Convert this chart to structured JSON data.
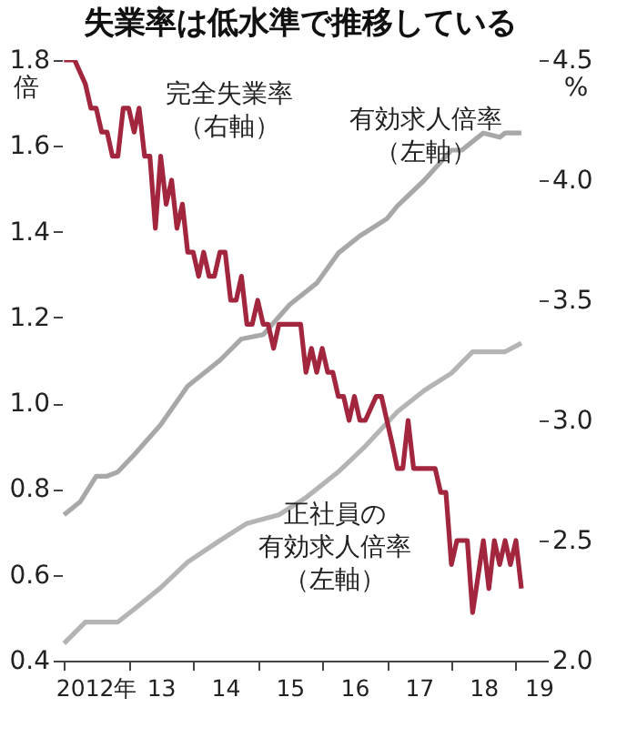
{
  "chart_data": {
    "type": "line",
    "title": "失業率は低水準で推移している",
    "ylabel": "倍",
    "y2label": "%",
    "xlim": [
      "2011-12-20",
      "2019-05-10"
    ],
    "xticks": [
      {
        "value": "2012-01-01",
        "label": null
      },
      {
        "value": "2012-07-01",
        "label": "2012年"
      },
      {
        "value": "2013-01-01",
        "label": null
      },
      {
        "value": "2013-07-01",
        "label": "13"
      },
      {
        "value": "2014-01-01",
        "label": null
      },
      {
        "value": "2014-07-01",
        "label": "14"
      },
      {
        "value": "2015-01-01",
        "label": null
      },
      {
        "value": "2015-07-01",
        "label": "15"
      },
      {
        "value": "2016-01-01",
        "label": null
      },
      {
        "value": "2016-07-01",
        "label": "16"
      },
      {
        "value": "2017-01-01",
        "label": null
      },
      {
        "value": "2017-07-01",
        "label": "17"
      },
      {
        "value": "2018-01-01",
        "label": null
      },
      {
        "value": "2018-07-01",
        "label": "18"
      },
      {
        "value": "2019-01-01",
        "label": null
      },
      {
        "value": "2019-05-10",
        "label": "19"
      }
    ],
    "ylim": [
      0.4,
      1.8
    ],
    "yticks": [
      0.4,
      0.6,
      0.8,
      {
        "value": 1.0,
        "label": "1.0"
      },
      1.2,
      1.4,
      1.6,
      1.8
    ],
    "y2lim": [
      2.0,
      4.5
    ],
    "y2ticks": [
      {
        "value": 2.0,
        "label": "2.0"
      },
      2.5,
      {
        "value": 3.0,
        "label": "3.0"
      },
      3.5,
      {
        "value": 4.0,
        "label": "4.0"
      },
      4.5
    ],
    "grid": false,
    "marker": "none",
    "line_style": "solid",
    "annotations": [
      "完全失業率",
      "（右軸）",
      "有効求人倍率",
      "（左軸）",
      "正社員の",
      "有効求人倍率",
      "（左軸）"
    ],
    "series": [
      {
        "color": "#a8a8a8",
        "x": [
          "2012-01",
          "2012-04",
          "2012-07",
          "2012-09",
          "2012-11",
          "2013-02",
          "2013-07",
          "2013-12",
          "2014-06",
          "2014-10",
          "2015-02",
          "2015-07",
          "2015-12",
          "2016-04",
          "2016-08",
          "2017-01",
          "2017-03",
          "2017-08",
          "2018-01",
          "2018-03",
          "2018-07",
          "2018-10",
          "2018-11",
          "2019-02"
        ],
        "values": [
          0.74,
          0.77,
          0.83,
          0.83,
          0.84,
          0.88,
          0.95,
          1.04,
          1.1,
          1.15,
          1.16,
          1.23,
          1.28,
          1.35,
          1.39,
          1.43,
          1.46,
          1.52,
          1.59,
          1.59,
          1.63,
          1.62,
          1.63,
          1.63
        ]
      },
      {
        "color": "#b4b4b4",
        "x": [
          "2012-01",
          "2012-05",
          "2012-11",
          "2013-02",
          "2013-07",
          "2013-12",
          "2014-06",
          "2014-11",
          "2015-05",
          "2015-10",
          "2016-04",
          "2016-09",
          "2017-03",
          "2017-08",
          "2018-01",
          "2018-05",
          "2018-09",
          "2018-11",
          "2019-02"
        ],
        "values": [
          0.44,
          0.49,
          0.49,
          0.52,
          0.57,
          0.63,
          0.68,
          0.72,
          0.74,
          0.78,
          0.84,
          0.9,
          0.98,
          1.03,
          1.07,
          1.12,
          1.12,
          1.12,
          1.14
        ]
      },
      {
        "color": "#a3263f",
        "axis": "y2",
        "x": [
          "2012-01",
          "2012-03",
          "2012-05",
          "2012-06",
          "2012-07",
          "2012-08",
          "2012-09",
          "2012-10",
          "2012-11",
          "2012-12",
          "2013-01",
          "2013-02",
          "2013-03",
          "2013-04",
          "2013-05",
          "2013-06",
          "2013-07",
          "2013-08",
          "2013-09",
          "2013-10",
          "2013-11",
          "2013-12",
          "2014-01",
          "2014-02",
          "2014-03",
          "2014-04",
          "2014-05",
          "2014-06",
          "2014-07",
          "2014-08",
          "2014-09",
          "2014-10",
          "2014-11",
          "2014-12",
          "2015-01",
          "2015-02",
          "2015-03",
          "2015-04",
          "2015-05",
          "2015-09",
          "2015-10",
          "2015-11",
          "2015-12",
          "2016-01",
          "2016-02",
          "2016-03",
          "2016-04",
          "2016-05",
          "2016-06",
          "2016-07",
          "2016-08",
          "2016-09",
          "2016-11",
          "2016-12",
          "2017-02",
          "2017-03",
          "2017-04",
          "2017-05",
          "2017-06",
          "2017-10",
          "2017-11",
          "2017-12",
          "2018-01",
          "2018-02",
          "2018-04",
          "2018-05",
          "2018-07",
          "2018-08",
          "2018-09",
          "2018-10",
          "2018-11",
          "2018-12",
          "2019-01",
          "2019-02"
        ],
        "values": [
          4.5,
          4.5,
          4.4,
          4.3,
          4.3,
          4.2,
          4.2,
          4.1,
          4.1,
          4.3,
          4.3,
          4.2,
          4.3,
          4.1,
          4.1,
          3.8,
          4.1,
          3.9,
          4.0,
          3.8,
          3.9,
          3.7,
          3.7,
          3.6,
          3.7,
          3.6,
          3.6,
          3.7,
          3.7,
          3.5,
          3.5,
          3.6,
          3.4,
          3.4,
          3.5,
          3.4,
          3.4,
          3.3,
          3.4,
          3.4,
          3.2,
          3.3,
          3.2,
          3.3,
          3.2,
          3.2,
          3.1,
          3.1,
          3.0,
          3.1,
          3.0,
          3.0,
          3.1,
          3.1,
          2.9,
          2.8,
          2.8,
          3.0,
          2.8,
          2.8,
          2.7,
          2.7,
          2.4,
          2.5,
          2.5,
          2.2,
          2.5,
          2.3,
          2.5,
          2.4,
          2.5,
          2.4,
          2.5,
          2.3
        ]
      }
    ]
  }
}
